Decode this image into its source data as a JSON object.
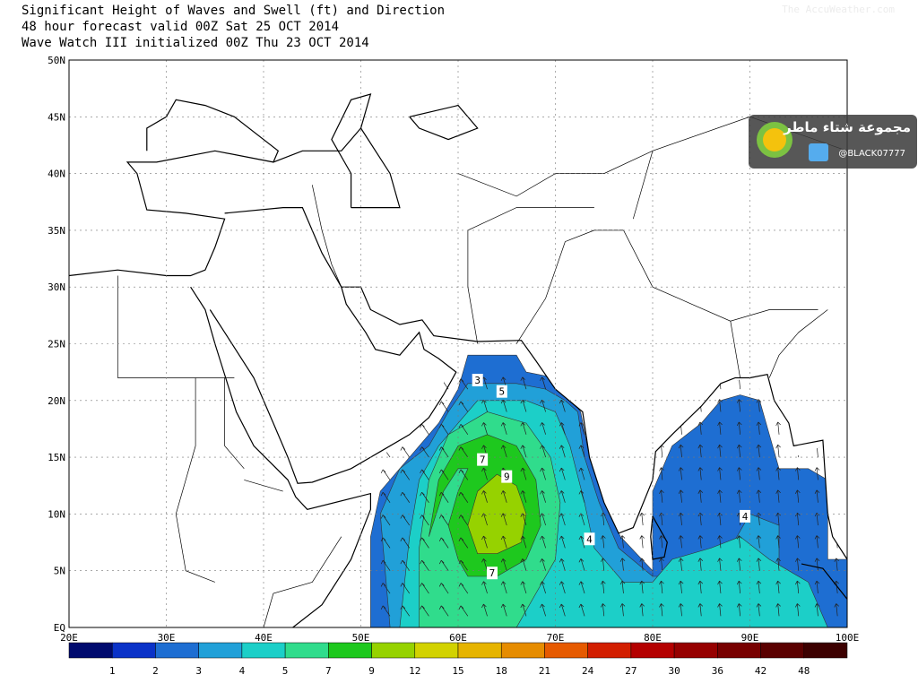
{
  "header": {
    "lines": [
      "Significant Height of Waves and Swell (ft) and Direction",
      "48 hour forecast valid 00Z Sat 25 OCT 2014",
      "Wave Watch III initialized 00Z Thu 23 OCT 2014"
    ],
    "credit": "The AccuWeather.com"
  },
  "map": {
    "lat_labels": [
      "50N",
      "45N",
      "40N",
      "35N",
      "30N",
      "25N",
      "20N",
      "15N",
      "10N",
      "5N",
      "EQ"
    ],
    "lon_labels": [
      "20E",
      "30E",
      "40E",
      "50E",
      "60E",
      "70E",
      "80E",
      "90E",
      "100E"
    ],
    "contour_labels": [
      3,
      5,
      7,
      9,
      7,
      4,
      4
    ]
  },
  "colorbar": {
    "levels": [
      1,
      2,
      3,
      4,
      5,
      7,
      9,
      12,
      15,
      18,
      21,
      24,
      27,
      30,
      36,
      42,
      48
    ],
    "colors": [
      "#000a6e",
      "#0a32c8",
      "#1e6ed2",
      "#21a0d8",
      "#1ccfc8",
      "#30dc8c",
      "#1ec81e",
      "#96d200",
      "#d2d200",
      "#e6b400",
      "#e68c00",
      "#e65a00",
      "#d21e00",
      "#b40000",
      "#960000",
      "#780000",
      "#5a0000",
      "#3c0000"
    ]
  },
  "watermark": {
    "group": "مجموعة شتاء ماطر",
    "handle": "@BLACK07777"
  }
}
